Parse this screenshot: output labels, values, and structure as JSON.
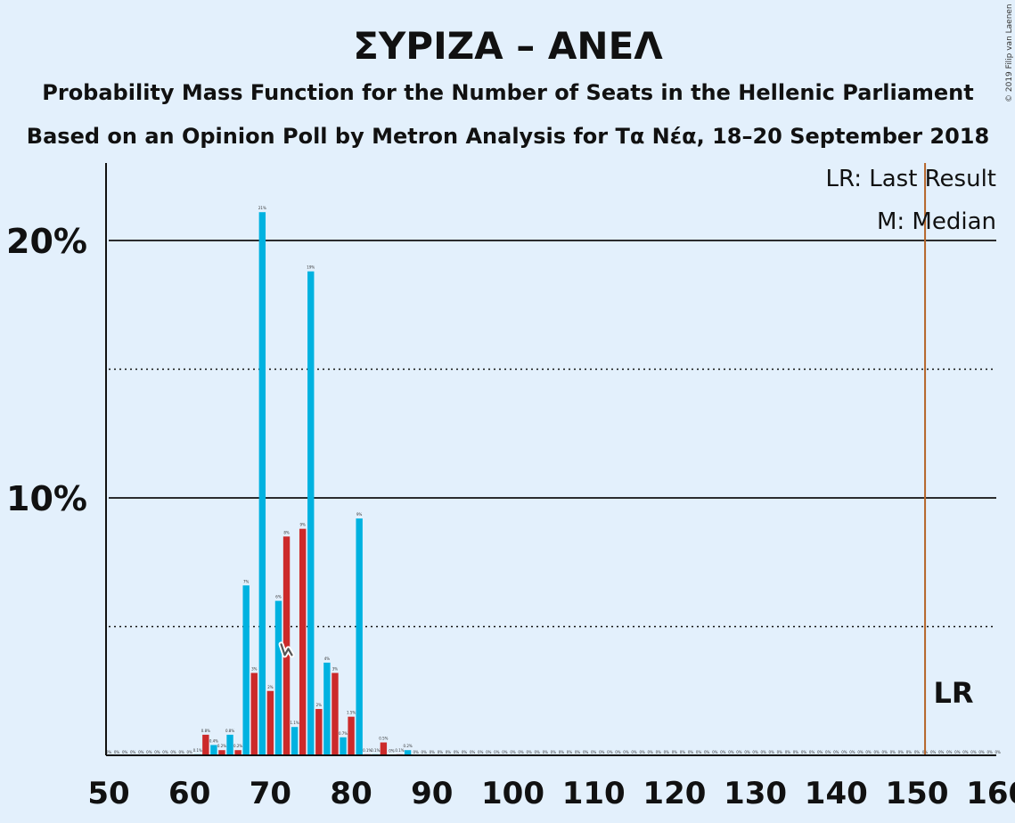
{
  "chart_data": {
    "type": "bar",
    "title": "ΣΥΡΙΖΑ – ΑΝΕΛ",
    "subtitle1": "Probability Mass Function for the Number of Seats in the Hellenic Parliament",
    "subtitle2": "Based on an Opinion Poll by Metron Analysis for Τα Νέα, 18–20 September 2018",
    "copyright": "© 2019 Filip van Laenen",
    "legend": {
      "lr": "LR: Last Result",
      "median": "M: Median"
    },
    "lr_marker_label": "LR",
    "median_marker_label": "M",
    "last_result_seat": 151,
    "median_seat": 72,
    "xlim": [
      50,
      160
    ],
    "ylim": [
      0,
      23
    ],
    "x_ticks": [
      50,
      60,
      70,
      80,
      90,
      100,
      110,
      120,
      130,
      140,
      150,
      160
    ],
    "y_ticks": [
      {
        "value": 10,
        "label": "10%",
        "style": "solid"
      },
      {
        "value": 20,
        "label": "20%",
        "style": "solid"
      }
    ],
    "dotted_gridlines": [
      5,
      15
    ],
    "colors": {
      "blue": "#00b2e0",
      "red": "#cc2a2a",
      "lr_line": "#b5652a",
      "axis": "#111111"
    },
    "bars": [
      {
        "x": 61,
        "value": 0.04,
        "label": "0.1%",
        "color": "blue"
      },
      {
        "x": 62,
        "value": 0.8,
        "label": "0.8%",
        "color": "red"
      },
      {
        "x": 63,
        "value": 0.4,
        "label": "0.4%",
        "color": "blue"
      },
      {
        "x": 64,
        "value": 0.2,
        "label": "0.2%",
        "color": "red"
      },
      {
        "x": 65,
        "value": 0.8,
        "label": "0.8%",
        "color": "blue"
      },
      {
        "x": 66,
        "value": 0.2,
        "label": "0.2%",
        "color": "red"
      },
      {
        "x": 67,
        "value": 6.6,
        "label": "7%",
        "color": "blue"
      },
      {
        "x": 68,
        "value": 3.2,
        "label": "3%",
        "color": "red"
      },
      {
        "x": 69,
        "value": 21.1,
        "label": "21%",
        "color": "blue"
      },
      {
        "x": 70,
        "value": 2.5,
        "label": "2%",
        "color": "red"
      },
      {
        "x": 71,
        "value": 6.0,
        "label": "6%",
        "color": "blue"
      },
      {
        "x": 72,
        "value": 8.5,
        "label": "8%",
        "color": "red"
      },
      {
        "x": 73,
        "value": 1.1,
        "label": "1.1%",
        "color": "blue"
      },
      {
        "x": 74,
        "value": 8.8,
        "label": "9%",
        "color": "red"
      },
      {
        "x": 75,
        "value": 18.8,
        "label": "19%",
        "color": "blue"
      },
      {
        "x": 76,
        "value": 1.8,
        "label": "2%",
        "color": "red"
      },
      {
        "x": 77,
        "value": 3.6,
        "label": "4%",
        "color": "blue"
      },
      {
        "x": 78,
        "value": 3.2,
        "label": "3%",
        "color": "red"
      },
      {
        "x": 79,
        "value": 0.7,
        "label": "0.7%",
        "color": "blue"
      },
      {
        "x": 80,
        "value": 1.5,
        "label": "1.5%",
        "color": "red"
      },
      {
        "x": 81,
        "value": 9.2,
        "label": "9%",
        "color": "blue"
      },
      {
        "x": 82,
        "value": 0.04,
        "label": "0.1%",
        "color": "red"
      },
      {
        "x": 83,
        "value": 0.04,
        "label": "0.1%",
        "color": "blue"
      },
      {
        "x": 84,
        "value": 0.5,
        "label": "0.5%",
        "color": "red"
      },
      {
        "x": 85,
        "value": 0.02,
        "label": "0%",
        "color": "blue"
      },
      {
        "x": 86,
        "value": 0.04,
        "label": "0.1%",
        "color": "red"
      },
      {
        "x": 87,
        "value": 0.2,
        "label": "0.2%",
        "color": "blue"
      }
    ],
    "zero_labels": {
      "label": "0%",
      "seats": [
        50,
        51,
        52,
        53,
        54,
        55,
        56,
        57,
        58,
        59,
        60,
        88,
        89,
        90,
        91,
        92,
        93,
        94,
        95,
        96,
        97,
        98,
        99,
        100,
        101,
        102,
        103,
        104,
        105,
        106,
        107,
        108,
        109,
        110,
        111,
        112,
        113,
        114,
        115,
        116,
        117,
        118,
        119,
        120,
        121,
        122,
        123,
        124,
        125,
        126,
        127,
        128,
        129,
        130,
        131,
        132,
        133,
        134,
        135,
        136,
        137,
        138,
        139,
        140,
        141,
        142,
        143,
        144,
        145,
        146,
        147,
        148,
        149,
        150,
        151,
        152,
        153,
        154,
        155,
        156,
        157,
        158,
        159,
        160
      ]
    }
  }
}
